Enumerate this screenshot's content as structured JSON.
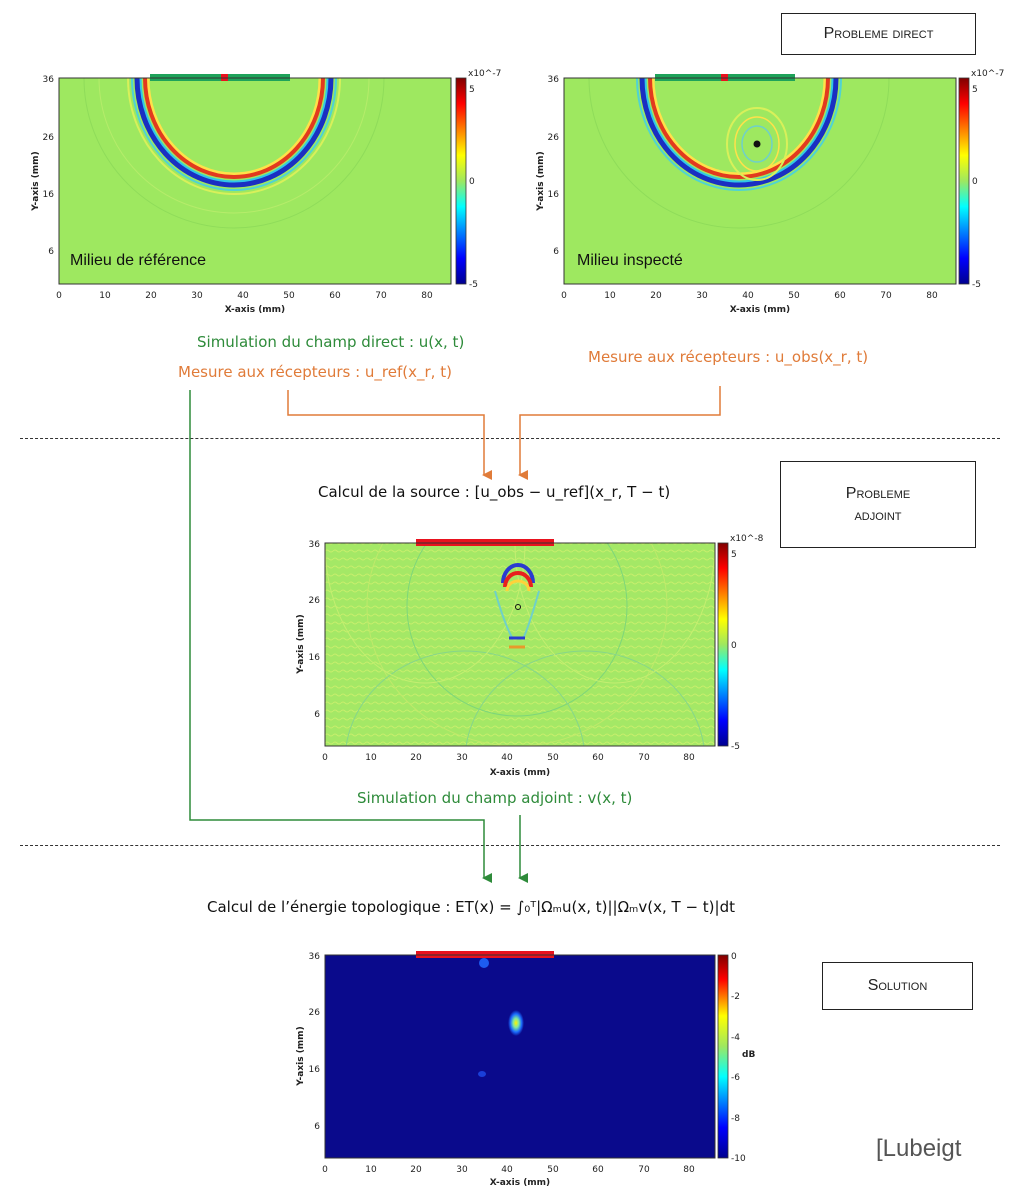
{
  "boxes": {
    "direct": "Probleme direct",
    "adjoint_line1": "Probleme",
    "adjoint_line2": "adjoint",
    "solution": "Solution"
  },
  "plots": {
    "x_axis_label": "X-axis (mm)",
    "y_axis_label": "Y-axis (mm)",
    "x_ticks": [
      "0",
      "10",
      "20",
      "30",
      "40",
      "50",
      "60",
      "70",
      "80"
    ],
    "y_ticks": [
      "36",
      "26",
      "16",
      "6"
    ],
    "reference": {
      "label": "Milieu de référence",
      "colorbar_exponent": "x10^-7",
      "colorbar_ticks": [
        "5",
        "0",
        "-5"
      ]
    },
    "inspected": {
      "label": "Milieu inspecté",
      "colorbar_exponent": "x10^-7",
      "colorbar_ticks": [
        "5",
        "0",
        "-5"
      ]
    },
    "adjoint": {
      "colorbar_exponent": "x10^-8",
      "colorbar_ticks": [
        "5",
        "0",
        "-5"
      ]
    },
    "solution": {
      "colorbar_unit": "dB",
      "colorbar_ticks": [
        "0",
        "-2",
        "-4",
        "-6",
        "-8",
        "-10"
      ]
    }
  },
  "captions": {
    "direct_sim": "Simulation du champ direct : u(x, t)",
    "ref_measure": "Mesure aux récepteurs : u_ref(x_r, t)",
    "obs_measure": "Mesure aux récepteurs : u_obs(x_r, t)",
    "source_calc": "Calcul de la source : [u_obs − u_ref](x_r, T − t)",
    "adjoint_sim": "Simulation du champ adjoint : v(x, t)",
    "energy_calc": "Calcul de l’énergie topologique : ET(x) = ∫₀ᵀ|Ωₘu(x, t)||Ωₘv(x, T − t)|dt"
  },
  "citation": "[Lubeigt",
  "colors": {
    "green_text": "#2e8b3a",
    "orange_text": "#e07b39",
    "field_background": "#9ee860",
    "solution_background": "#0a0a8c",
    "source_bar": "#e8121e",
    "receiver_bar": "#1fa35a",
    "arrow_orange": "#e07b39",
    "arrow_green": "#2e8b3a"
  }
}
